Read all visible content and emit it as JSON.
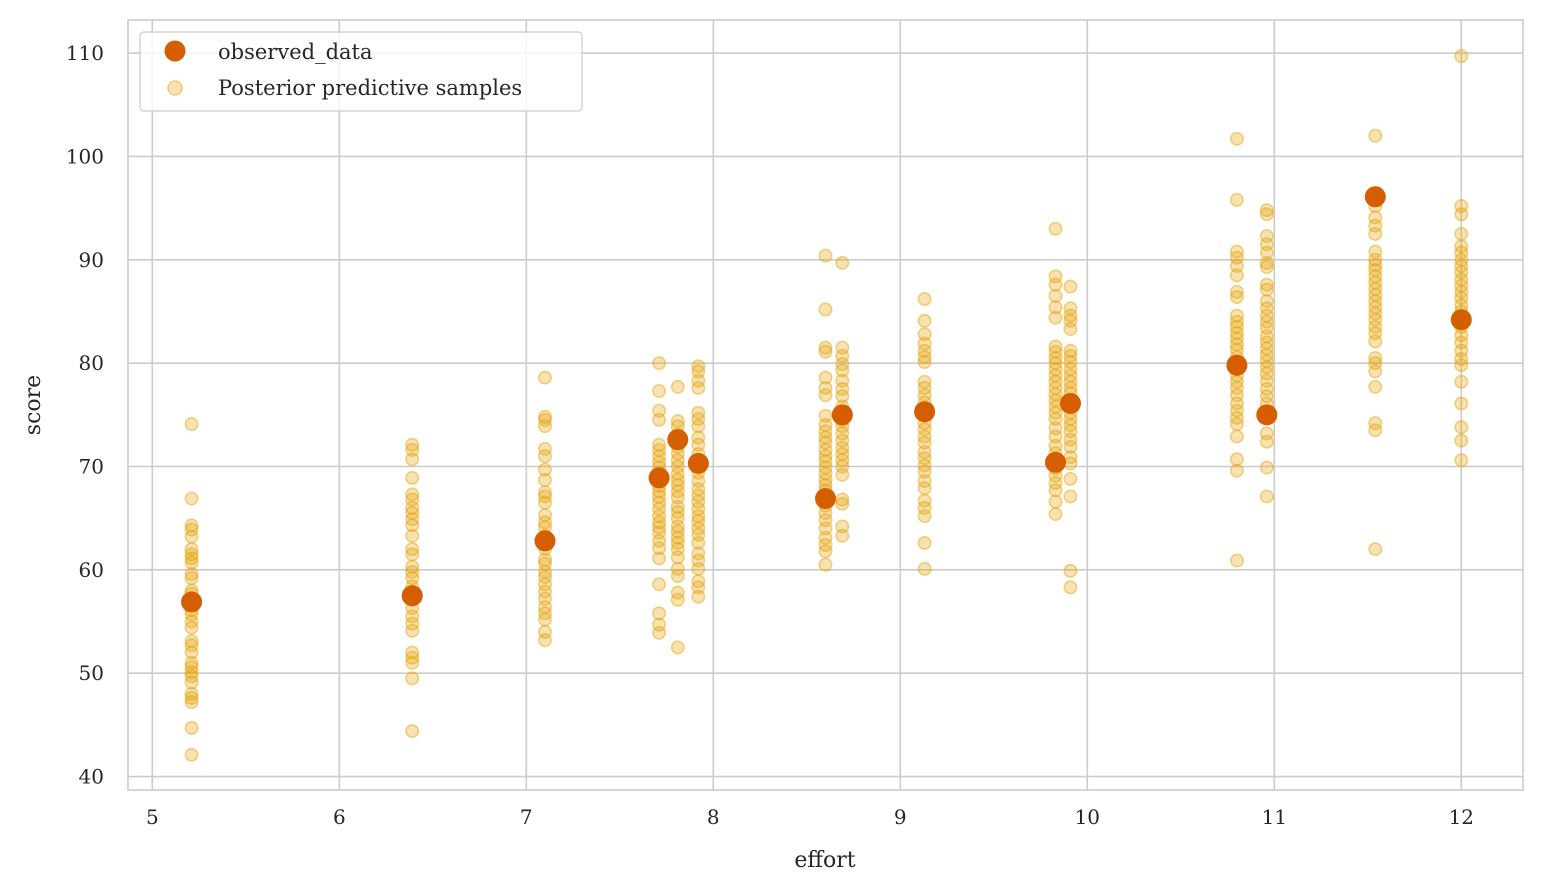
{
  "chart_data": {
    "type": "scatter",
    "title": "",
    "xlabel": "effort",
    "ylabel": "score",
    "xlim": [
      4.87,
      12.33
    ],
    "ylim": [
      38.7,
      113.2
    ],
    "xticks": [
      5,
      6,
      7,
      8,
      9,
      10,
      11,
      12
    ],
    "yticks": [
      40,
      50,
      60,
      70,
      80,
      90,
      100,
      110
    ],
    "grid": true,
    "legend_position": "top-left",
    "colors": {
      "observed": "#d55e00",
      "predictive": "#e69f00",
      "grid": "#cccccc",
      "frame": "#cccccc",
      "text": "#262626"
    },
    "legend": [
      {
        "key": "observed",
        "label": "observed_data"
      },
      {
        "key": "predictive",
        "label": "Posterior predictive samples"
      }
    ],
    "series": [
      {
        "name": "observed_data",
        "key": "observed",
        "points": [
          [
            5.21,
            56.9
          ],
          [
            6.39,
            57.5
          ],
          [
            7.1,
            62.8
          ],
          [
            7.71,
            68.9
          ],
          [
            7.81,
            72.6
          ],
          [
            7.92,
            70.3
          ],
          [
            8.6,
            66.9
          ],
          [
            8.69,
            75.0
          ],
          [
            9.13,
            75.3
          ],
          [
            9.83,
            70.4
          ],
          [
            9.91,
            76.1
          ],
          [
            10.8,
            79.8
          ],
          [
            10.96,
            75.0
          ],
          [
            11.54,
            96.1
          ],
          [
            12.0,
            84.2
          ]
        ]
      },
      {
        "name": "Posterior predictive samples",
        "key": "predictive",
        "groups": [
          {
            "x": 5.21,
            "y": [
              74.1,
              66.9,
              64.3,
              63.9,
              63.2,
              62.0,
              61.5,
              61.1,
              60.7,
              59.6,
              59.2,
              58.0,
              57.7,
              57.2,
              56.1,
              55.7,
              55.0,
              54.4,
              53.1,
              52.7,
              52.0,
              51.0,
              50.6,
              50.1,
              49.7,
              49.1,
              48.0,
              47.6,
              47.2,
              44.7,
              42.1
            ]
          },
          {
            "x": 6.39,
            "y": [
              72.1,
              71.6,
              70.7,
              68.9,
              67.3,
              66.8,
              66.0,
              65.5,
              64.9,
              64.3,
              63.3,
              62.0,
              61.5,
              60.3,
              59.8,
              59.2,
              58.4,
              57.9,
              57.1,
              56.3,
              55.5,
              54.8,
              54.1,
              52.0,
              51.5,
              51.0,
              49.5,
              44.4
            ]
          },
          {
            "x": 7.1,
            "y": [
              78.6,
              74.8,
              74.5,
              73.9,
              71.7,
              71.0,
              69.7,
              68.7,
              67.5,
              67.1,
              66.5,
              65.3,
              64.6,
              64.1,
              63.3,
              62.7,
              62.0,
              61.0,
              60.6,
              59.8,
              59.3,
              58.6,
              57.9,
              57.2,
              56.4,
              55.8,
              55.2,
              54.0,
              53.2
            ]
          },
          {
            "x": 7.71,
            "y": [
              80.0,
              77.3,
              75.4,
              74.5,
              72.1,
              71.6,
              71.0,
              70.4,
              69.9,
              69.4,
              68.8,
              68.1,
              67.6,
              67.1,
              66.5,
              65.9,
              65.2,
              64.6,
              64.1,
              63.6,
              62.8,
              62.1,
              61.1,
              58.6,
              55.8,
              54.7,
              53.9
            ]
          },
          {
            "x": 7.81,
            "y": [
              77.7,
              74.4,
              73.9,
              73.1,
              71.9,
              71.3,
              70.6,
              70.0,
              69.3,
              68.7,
              68.2,
              67.6,
              67.0,
              66.1,
              65.6,
              65.0,
              64.2,
              63.7,
              63.1,
              62.6,
              62.0,
              61.2,
              60.1,
              59.4,
              57.8,
              57.1,
              52.5
            ]
          },
          {
            "x": 7.92,
            "y": [
              79.7,
              79.2,
              78.3,
              77.6,
              75.2,
              74.6,
              73.9,
              72.8,
              72.1,
              71.2,
              70.0,
              69.4,
              68.6,
              67.8,
              67.2,
              66.6,
              65.9,
              65.2,
              64.7,
              64.0,
              63.4,
              62.6,
              61.6,
              60.9,
              60.1,
              58.9,
              58.3,
              57.4
            ]
          },
          {
            "x": 8.6,
            "y": [
              90.4,
              85.2,
              81.5,
              81.1,
              78.6,
              77.6,
              76.9,
              74.9,
              74.0,
              73.4,
              72.8,
              72.3,
              71.6,
              71.0,
              70.5,
              69.9,
              69.3,
              68.7,
              68.2,
              67.7,
              66.2,
              65.5,
              64.8,
              64.0,
              63.1,
              62.4,
              61.8,
              60.5
            ]
          },
          {
            "x": 8.69,
            "y": [
              89.7,
              81.5,
              80.7,
              79.9,
              79.3,
              78.3,
              77.5,
              76.8,
              75.8,
              74.4,
              73.9,
              73.2,
              72.5,
              71.8,
              71.2,
              70.6,
              70.0,
              69.2,
              66.8,
              66.4,
              64.2,
              63.3
            ]
          },
          {
            "x": 9.13,
            "y": [
              86.2,
              84.1,
              82.8,
              81.9,
              81.2,
              80.6,
              80.1,
              78.2,
              77.6,
              76.9,
              76.2,
              75.6,
              74.9,
              74.2,
              73.6,
              72.9,
              72.3,
              71.4,
              70.8,
              70.1,
              69.5,
              68.6,
              67.9,
              66.7,
              66.0,
              65.2,
              62.6,
              60.1
            ]
          },
          {
            "x": 9.83,
            "y": [
              93.0,
              88.4,
              87.6,
              86.5,
              85.4,
              84.4,
              81.6,
              81.1,
              80.5,
              80.0,
              79.4,
              78.8,
              78.2,
              77.6,
              77.0,
              76.4,
              75.8,
              75.2,
              74.6,
              73.7,
              72.9,
              72.0,
              71.3,
              69.8,
              69.1,
              68.4,
              67.7,
              66.6,
              65.4
            ]
          },
          {
            "x": 9.91,
            "y": [
              87.4,
              85.3,
              84.6,
              84.1,
              83.3,
              81.2,
              80.7,
              80.1,
              79.4,
              78.8,
              78.2,
              77.6,
              77.1,
              76.4,
              75.8,
              75.2,
              74.6,
              74.0,
              73.4,
              72.6,
              71.9,
              70.9,
              70.3,
              68.8,
              67.1,
              59.9,
              58.3
            ]
          },
          {
            "x": 10.8,
            "y": [
              101.7,
              95.8,
              90.8,
              90.2,
              89.4,
              88.5,
              86.9,
              86.4,
              84.6,
              84.0,
              83.5,
              82.9,
              82.4,
              81.8,
              81.3,
              80.6,
              80.0,
              79.4,
              78.8,
              78.2,
              77.6,
              76.9,
              76.1,
              75.4,
              74.7,
              74.1,
              72.9,
              70.7,
              69.6,
              60.9
            ]
          },
          {
            "x": 10.96,
            "y": [
              94.8,
              94.4,
              92.3,
              91.5,
              90.7,
              89.7,
              89.3,
              87.6,
              87.1,
              86.0,
              85.3,
              84.6,
              84.0,
              83.4,
              82.6,
              82.0,
              81.4,
              80.8,
              80.2,
              79.6,
              79.0,
              78.3,
              77.5,
              76.8,
              76.1,
              74.7,
              73.2,
              72.4,
              69.9,
              67.1
            ]
          },
          {
            "x": 11.54,
            "y": [
              102.0,
              95.2,
              94.1,
              93.3,
              92.5,
              90.8,
              90.0,
              89.5,
              89.0,
              88.4,
              87.8,
              87.2,
              86.6,
              86.0,
              85.4,
              84.8,
              84.2,
              83.5,
              82.9,
              82.1,
              80.5,
              80.0,
              79.2,
              77.7,
              74.2,
              73.5,
              62.0
            ]
          },
          {
            "x": 12.0,
            "y": [
              109.7,
              95.2,
              94.4,
              92.5,
              91.3,
              90.7,
              90.0,
              89.4,
              88.8,
              88.1,
              87.5,
              86.9,
              86.3,
              85.6,
              85.0,
              84.2,
              83.5,
              82.7,
              82.0,
              81.2,
              80.4,
              79.8,
              78.2,
              76.1,
              73.8,
              72.5,
              70.6
            ]
          }
        ]
      }
    ]
  }
}
